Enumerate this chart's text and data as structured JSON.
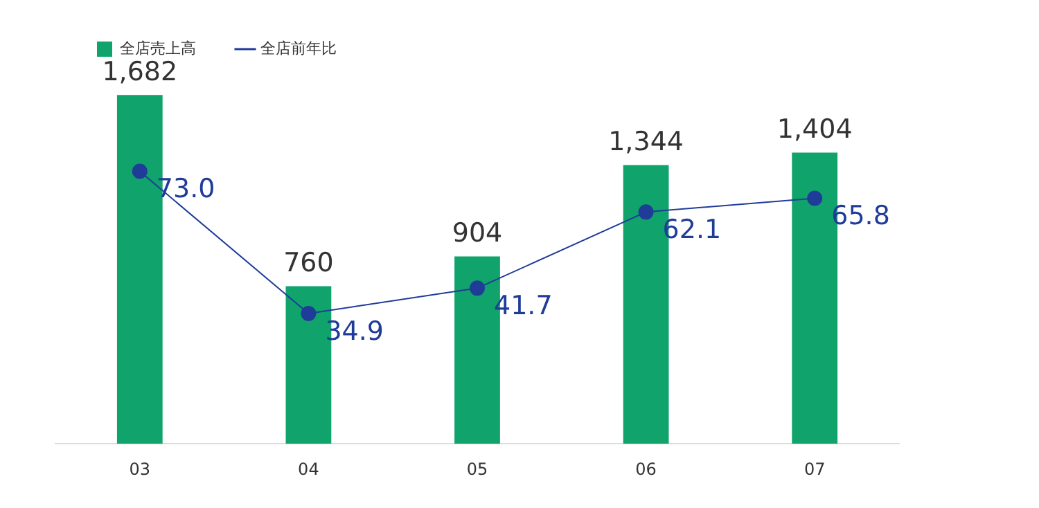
{
  "chart_data": {
    "type": "bar",
    "categories": [
      "03",
      "04",
      "05",
      "06",
      "07"
    ],
    "series": [
      {
        "name": "全店売上高",
        "color": "#10a36b",
        "values": [
          1682,
          760,
          904,
          1344,
          1404
        ],
        "value_labels": [
          "1,682",
          "760",
          "904",
          "1,344",
          "1,404"
        ]
      },
      {
        "name": "全店前年比",
        "type": "line",
        "axis": "y2",
        "color": "#1f3c99",
        "values": [
          73.0,
          34.9,
          41.7,
          62.1,
          65.8
        ],
        "value_labels": [
          "73.0",
          "34.9",
          "41.7",
          "62.1",
          "65.8"
        ]
      }
    ],
    "data_labels": true,
    "tick_labels": "x",
    "grid": false,
    "legend": "top left",
    "marker": "circle",
    "line_style": "solid"
  }
}
